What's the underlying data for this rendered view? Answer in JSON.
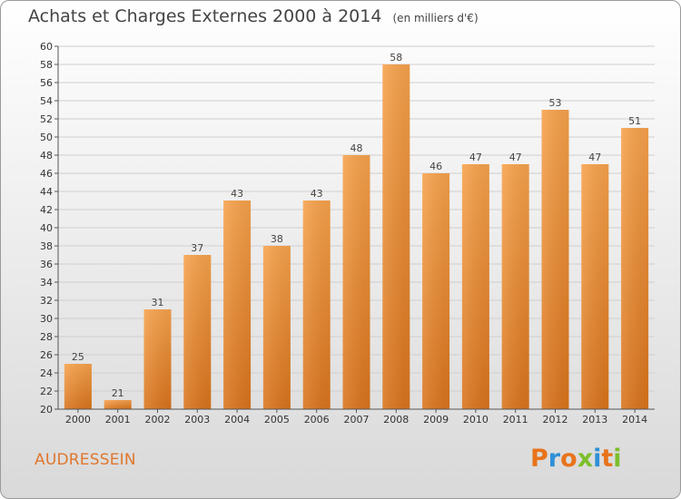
{
  "title": "Achats et Charges Externes 2000 à 2014",
  "subtitle": "(en milliers d'€)",
  "place": "AUDRESSEIN",
  "logo_text": "Proxiti",
  "colors": {
    "bar_top": "#f7a24c",
    "bar_bottom": "#d9741c",
    "grid": "#cfcfcf",
    "place": "#e0762e"
  },
  "chart_data": {
    "type": "bar",
    "categories": [
      "2000",
      "2001",
      "2002",
      "2003",
      "2004",
      "2005",
      "2006",
      "2007",
      "2008",
      "2009",
      "2010",
      "2011",
      "2012",
      "2013",
      "2014"
    ],
    "values": [
      25,
      21,
      31,
      37,
      43,
      38,
      43,
      48,
      58,
      46,
      47,
      47,
      53,
      47,
      51
    ],
    "data_labels": [
      "25",
      "21",
      "31",
      "37",
      "43",
      "38",
      "43",
      "48",
      "58",
      "46",
      "47",
      "47",
      "53",
      "47",
      "51"
    ],
    "ylim": [
      20,
      60
    ],
    "yticks": [
      "20",
      "22",
      "24",
      "26",
      "28",
      "30",
      "32",
      "34",
      "36",
      "38",
      "40",
      "42",
      "44",
      "46",
      "48",
      "50",
      "52",
      "54",
      "56",
      "58",
      "60"
    ],
    "grid": true,
    "xlabel": "",
    "ylabel": ""
  }
}
